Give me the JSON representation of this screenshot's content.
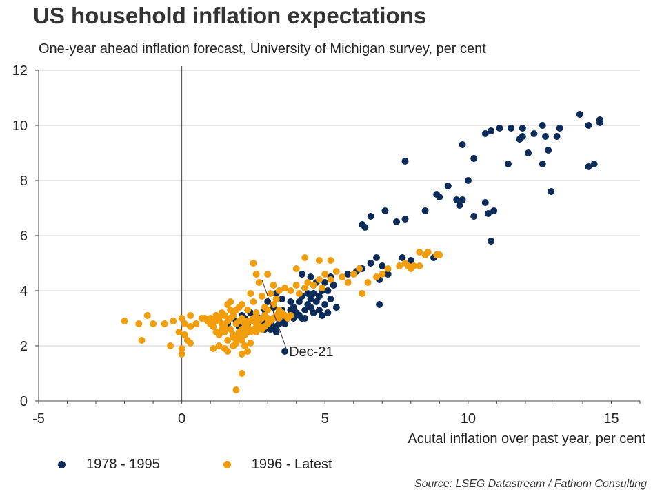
{
  "chart_data": {
    "type": "scatter",
    "title": "US household inflation expectations",
    "subtitle": "One-year ahead inflation forecast, University of Michigan survey, per cent",
    "xlabel": "Acutal inflation over past year, per cent",
    "ylabel": "",
    "xlim": [
      -5,
      16
    ],
    "ylim": [
      0,
      12
    ],
    "x_ticks": [
      "-5",
      "0",
      "5",
      "10",
      "15"
    ],
    "y_ticks": [
      "0",
      "2",
      "4",
      "6",
      "8",
      "10",
      "12"
    ],
    "grid": "horizontal",
    "legend_position": "bottom-left",
    "source": "Source: LSEG Datastream / Fathom Consulting",
    "annotations": [
      {
        "text": "Dec-21",
        "x": 3.6,
        "y": 1.8,
        "line_to": {
          "x": 2.8,
          "y": 4.4
        }
      }
    ],
    "series": [
      {
        "name": "1978 - 1995",
        "color": "#0b2c5a",
        "points": [
          [
            13.9,
            10.4
          ],
          [
            14.6,
            10.2
          ],
          [
            14.6,
            10.1
          ],
          [
            14.2,
            10.0
          ],
          [
            12.6,
            10.0
          ],
          [
            11.5,
            9.9
          ],
          [
            11.1,
            9.9
          ],
          [
            11.9,
            9.9
          ],
          [
            13.2,
            9.9
          ],
          [
            10.8,
            9.8
          ],
          [
            10.6,
            9.7
          ],
          [
            12.3,
            9.7
          ],
          [
            11.9,
            9.6
          ],
          [
            12.7,
            9.6
          ],
          [
            13.1,
            9.6
          ],
          [
            11.8,
            9.5
          ],
          [
            9.8,
            9.3
          ],
          [
            12.8,
            9.1
          ],
          [
            12.1,
            9.0
          ],
          [
            10.2,
            8.8
          ],
          [
            7.8,
            8.7
          ],
          [
            11.4,
            8.6
          ],
          [
            12.6,
            8.6
          ],
          [
            14.4,
            8.6
          ],
          [
            14.2,
            8.5
          ],
          [
            10.0,
            8.0
          ],
          [
            9.3,
            7.8
          ],
          [
            12.9,
            7.6
          ],
          [
            8.9,
            7.5
          ],
          [
            9.0,
            7.4
          ],
          [
            9.6,
            7.3
          ],
          [
            9.8,
            7.3
          ],
          [
            9.7,
            7.1
          ],
          [
            10.6,
            7.2
          ],
          [
            10.9,
            6.9
          ],
          [
            10.7,
            6.8
          ],
          [
            8.5,
            6.9
          ],
          [
            7.1,
            6.9
          ],
          [
            10.2,
            6.7
          ],
          [
            6.6,
            6.7
          ],
          [
            7.8,
            6.6
          ],
          [
            7.5,
            6.5
          ],
          [
            6.3,
            6.4
          ],
          [
            6.4,
            6.3
          ],
          [
            10.8,
            5.8
          ],
          [
            8.9,
            5.3
          ],
          [
            8.8,
            5.2
          ],
          [
            7.7,
            5.2
          ],
          [
            6.8,
            5.2
          ],
          [
            6.6,
            5.0
          ],
          [
            7.0,
            4.9
          ],
          [
            8.0,
            5.1
          ],
          [
            6.2,
            4.8
          ],
          [
            6.3,
            4.8
          ],
          [
            6.1,
            4.7
          ],
          [
            5.8,
            4.6
          ],
          [
            7.2,
            4.6
          ],
          [
            5.2,
            4.5
          ],
          [
            5.0,
            4.3
          ],
          [
            4.7,
            4.3
          ],
          [
            5.3,
            4.2
          ],
          [
            4.2,
            4.6
          ],
          [
            4.5,
            4.5
          ],
          [
            4.3,
            4.1
          ],
          [
            4.6,
            4.2
          ],
          [
            4.9,
            4.0
          ],
          [
            5.1,
            4.0
          ],
          [
            4.4,
            3.9
          ],
          [
            4.6,
            3.9
          ],
          [
            4.8,
            3.8
          ],
          [
            5.2,
            3.7
          ],
          [
            6.9,
            4.4
          ],
          [
            4.2,
            3.8
          ],
          [
            4.5,
            3.7
          ],
          [
            4.7,
            3.6
          ],
          [
            5.0,
            3.5
          ],
          [
            5.4,
            3.4
          ],
          [
            4.4,
            3.5
          ],
          [
            4.1,
            3.6
          ],
          [
            3.9,
            3.4
          ],
          [
            4.3,
            3.3
          ],
          [
            4.6,
            3.2
          ],
          [
            4.8,
            3.3
          ],
          [
            5.1,
            3.2
          ],
          [
            4.9,
            3.1
          ],
          [
            4.5,
            3.4
          ],
          [
            4.0,
            3.2
          ],
          [
            4.2,
            3.0
          ],
          [
            3.8,
            3.3
          ],
          [
            3.6,
            3.1
          ],
          [
            3.4,
            3.2
          ],
          [
            3.7,
            3.0
          ],
          [
            3.5,
            2.9
          ],
          [
            3.2,
            3.0
          ],
          [
            3.0,
            2.9
          ],
          [
            3.3,
            2.7
          ],
          [
            3.1,
            2.8
          ],
          [
            2.8,
            2.9
          ],
          [
            2.6,
            3.1
          ],
          [
            2.9,
            3.3
          ],
          [
            3.2,
            3.4
          ],
          [
            3.5,
            3.3
          ],
          [
            3.9,
            3.0
          ],
          [
            4.1,
            3.1
          ],
          [
            4.3,
            3.0
          ],
          [
            3.4,
            2.8
          ],
          [
            3.6,
            2.8
          ],
          [
            2.7,
            3.0
          ],
          [
            2.5,
            2.9
          ],
          [
            2.3,
            2.8
          ],
          [
            2.2,
            3.0
          ],
          [
            2.4,
            3.2
          ],
          [
            2.1,
            3.1
          ],
          [
            1.9,
            2.9
          ],
          [
            1.7,
            3.0
          ],
          [
            2.0,
            2.7
          ],
          [
            3.1,
            2.6
          ],
          [
            3.3,
            2.5
          ],
          [
            6.9,
            3.5
          ],
          [
            3.5,
            3.7
          ],
          [
            3.3,
            3.9
          ],
          [
            3.0,
            3.6
          ],
          [
            1.6,
            2.8
          ],
          [
            2.9,
            2.6
          ],
          [
            3.8,
            3.6
          ],
          [
            3.6,
            1.8
          ]
        ]
      },
      {
        "name": "1996 - Latest",
        "color": "#f29d0b",
        "points": [
          [
            -2.0,
            2.9
          ],
          [
            -1.5,
            2.8
          ],
          [
            -1.2,
            3.1
          ],
          [
            -1.0,
            2.8
          ],
          [
            -0.6,
            2.8
          ],
          [
            -0.3,
            2.9
          ],
          [
            -1.4,
            2.2
          ],
          [
            -0.4,
            2.0
          ],
          [
            -0.1,
            2.5
          ],
          [
            0.0,
            3.0
          ],
          [
            0.1,
            2.8
          ],
          [
            0.3,
            2.7
          ],
          [
            0.3,
            3.1
          ],
          [
            0.5,
            2.8
          ],
          [
            0.2,
            2.2
          ],
          [
            0.0,
            1.9
          ],
          [
            0.0,
            1.7
          ],
          [
            0.3,
            2.1
          ],
          [
            0.1,
            2.4
          ],
          [
            0.7,
            3.0
          ],
          [
            0.8,
            3.0
          ],
          [
            0.9,
            2.9
          ],
          [
            1.0,
            2.8
          ],
          [
            1.1,
            2.7
          ],
          [
            1.2,
            2.9
          ],
          [
            1.3,
            3.0
          ],
          [
            1.4,
            2.8
          ],
          [
            1.5,
            2.7
          ],
          [
            1.6,
            2.9
          ],
          [
            1.7,
            3.0
          ],
          [
            1.8,
            3.1
          ],
          [
            1.9,
            2.8
          ],
          [
            2.0,
            2.9
          ],
          [
            2.1,
            3.0
          ],
          [
            2.2,
            2.8
          ],
          [
            2.3,
            2.7
          ],
          [
            2.4,
            2.9
          ],
          [
            2.5,
            3.0
          ],
          [
            2.6,
            2.8
          ],
          [
            2.7,
            2.9
          ],
          [
            2.8,
            3.0
          ],
          [
            2.9,
            3.1
          ],
          [
            3.0,
            3.0
          ],
          [
            3.1,
            2.9
          ],
          [
            3.2,
            3.0
          ],
          [
            3.3,
            3.1
          ],
          [
            3.4,
            3.0
          ],
          [
            3.5,
            3.2
          ],
          [
            3.6,
            3.1
          ],
          [
            3.7,
            3.0
          ],
          [
            3.8,
            3.1
          ],
          [
            1.2,
            2.5
          ],
          [
            1.3,
            2.4
          ],
          [
            1.5,
            2.5
          ],
          [
            1.7,
            2.6
          ],
          [
            1.8,
            2.4
          ],
          [
            2.0,
            2.5
          ],
          [
            2.1,
            2.6
          ],
          [
            2.2,
            2.4
          ],
          [
            2.4,
            2.5
          ],
          [
            2.5,
            2.6
          ],
          [
            2.6,
            2.5
          ],
          [
            2.8,
            2.6
          ],
          [
            2.9,
            2.7
          ],
          [
            1.6,
            2.2
          ],
          [
            1.8,
            2.3
          ],
          [
            1.9,
            2.1
          ],
          [
            2.1,
            2.2
          ],
          [
            2.2,
            2.0
          ],
          [
            2.4,
            2.1
          ],
          [
            1.5,
            1.9
          ],
          [
            1.3,
            2.0
          ],
          [
            1.1,
            1.9
          ],
          [
            1.6,
            1.8
          ],
          [
            2.1,
            1.7
          ],
          [
            2.3,
            1.8
          ],
          [
            1.8,
            2.0
          ],
          [
            2.0,
            2.3
          ],
          [
            2.2,
            2.6
          ],
          [
            1.4,
            3.2
          ],
          [
            1.7,
            3.3
          ],
          [
            2.0,
            3.4
          ],
          [
            2.3,
            3.3
          ],
          [
            2.6,
            3.2
          ],
          [
            2.9,
            3.4
          ],
          [
            3.2,
            3.5
          ],
          [
            3.4,
            3.3
          ],
          [
            1.6,
            3.5
          ],
          [
            2.5,
            3.6
          ],
          [
            2.8,
            3.8
          ],
          [
            3.1,
            3.9
          ],
          [
            3.4,
            4.0
          ],
          [
            3.6,
            4.1
          ],
          [
            3.8,
            4.0
          ],
          [
            4.0,
            4.2
          ],
          [
            4.1,
            3.9
          ],
          [
            4.3,
            4.1
          ],
          [
            4.4,
            4.3
          ],
          [
            4.6,
            4.2
          ],
          [
            4.8,
            4.4
          ],
          [
            4.9,
            4.1
          ],
          [
            5.0,
            4.6
          ],
          [
            5.2,
            4.4
          ],
          [
            5.4,
            4.7
          ],
          [
            5.6,
            4.5
          ],
          [
            5.8,
            4.3
          ],
          [
            6.0,
            4.6
          ],
          [
            6.2,
            4.8
          ],
          [
            6.5,
            4.3
          ],
          [
            6.8,
            4.5
          ],
          [
            7.0,
            4.6
          ],
          [
            7.2,
            4.8
          ],
          [
            7.6,
            4.9
          ],
          [
            7.8,
            5.0
          ],
          [
            8.0,
            4.8
          ],
          [
            8.1,
            4.9
          ],
          [
            8.3,
            4.9
          ],
          [
            8.5,
            5.3
          ],
          [
            8.6,
            5.4
          ],
          [
            8.3,
            5.4
          ],
          [
            8.9,
            5.3
          ],
          [
            9.0,
            5.3
          ],
          [
            7.9,
            4.9
          ],
          [
            6.3,
            3.9
          ],
          [
            4.0,
            4.8
          ],
          [
            4.3,
            5.2
          ],
          [
            4.8,
            5.1
          ],
          [
            5.2,
            5.1
          ],
          [
            2.5,
            5.0
          ],
          [
            2.6,
            4.6
          ],
          [
            3.0,
            4.6
          ],
          [
            3.2,
            4.2
          ],
          [
            2.7,
            4.3
          ],
          [
            2.4,
            3.9
          ],
          [
            3.3,
            3.7
          ],
          [
            1.7,
            3.6
          ],
          [
            1.9,
            3.3
          ],
          [
            2.1,
            3.5
          ],
          [
            1.5,
            3.1
          ],
          [
            1.9,
            0.4
          ],
          [
            2.1,
            1.0
          ],
          [
            3.0,
            3.3
          ],
          [
            1.4,
            2.6
          ],
          [
            2.3,
            2.9
          ],
          [
            2.6,
            3.0
          ],
          [
            2.7,
            2.7
          ],
          [
            3.0,
            2.8
          ],
          [
            1.2,
            3.1
          ],
          [
            1.0,
            3.0
          ]
        ]
      }
    ]
  },
  "legend": [
    {
      "label": "1978 - 1995",
      "color": "#0b2c5a"
    },
    {
      "label": "1996 - Latest",
      "color": "#f29d0b"
    }
  ]
}
